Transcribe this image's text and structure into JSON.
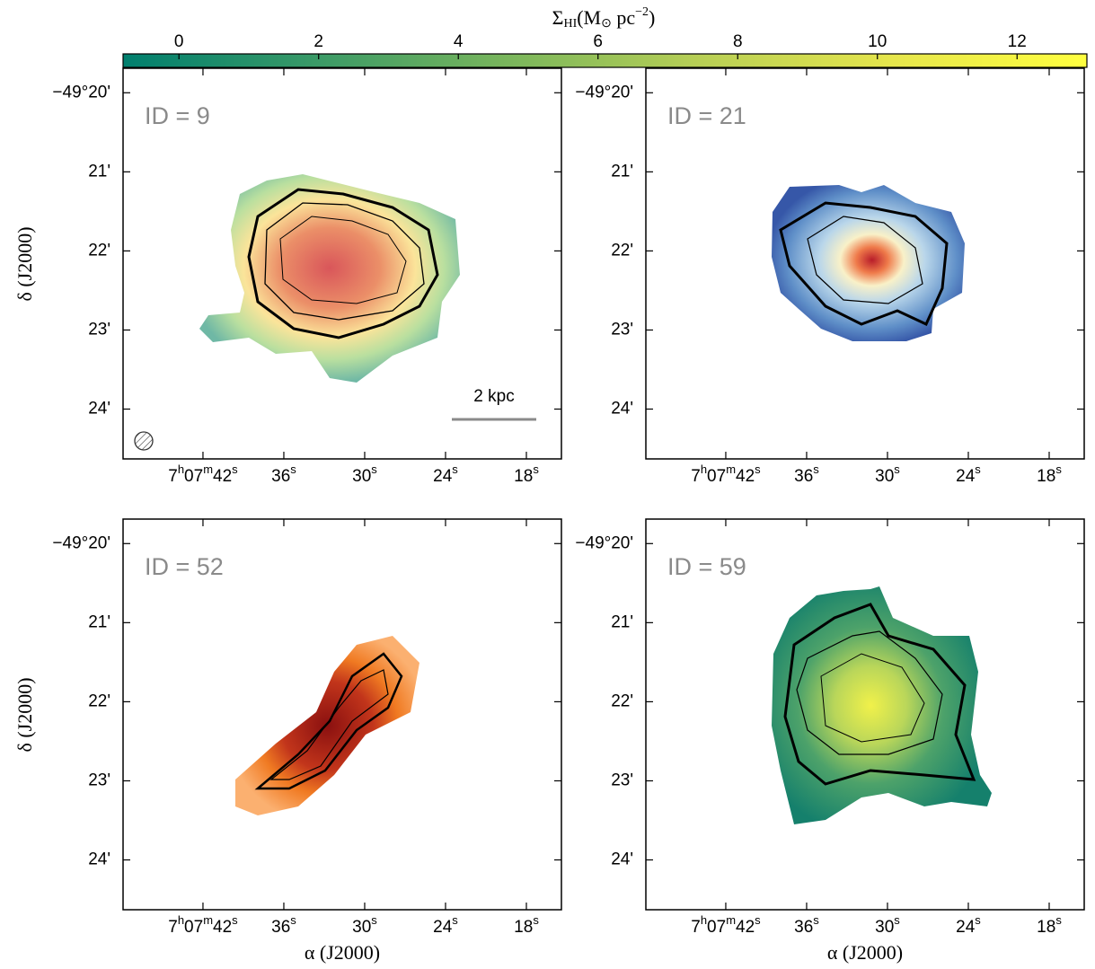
{
  "colorbar": {
    "label_parts": [
      "Σ",
      "HI",
      "(M",
      "⊙",
      " pc",
      "−2",
      ")"
    ],
    "lim": [
      -0.8,
      13.0
    ],
    "ticks": [
      0,
      2,
      4,
      6,
      8,
      10,
      12
    ],
    "colors": [
      "#007f6e",
      "#3a9a67",
      "#7ab65c",
      "#b8cf55",
      "#e6e64c",
      "#ffff3f"
    ]
  },
  "axes": {
    "ylabel": "δ (J2000)",
    "xlabel": "α (J2000)",
    "ylim": [
      19.69,
      24.63
    ],
    "yticks": [
      {
        "value": 20,
        "label": "−49°20'"
      },
      {
        "value": 21,
        "label": "21'"
      },
      {
        "value": 22,
        "label": "22'"
      },
      {
        "value": 23,
        "label": "23'"
      },
      {
        "value": 24,
        "label": "24'"
      }
    ],
    "xlim": [
      47.93,
      15.4
    ],
    "xticks": [
      {
        "value": 42,
        "label": [
          "7",
          "h",
          "07",
          "m",
          "42",
          "s"
        ]
      },
      {
        "value": 36,
        "label": [
          "36",
          "s"
        ]
      },
      {
        "value": 30,
        "label": [
          "30",
          "s"
        ]
      },
      {
        "value": 24,
        "label": [
          "24",
          "s"
        ]
      },
      {
        "value": 18,
        "label": [
          "18",
          "s"
        ]
      }
    ]
  },
  "panels": [
    {
      "id_label": "ID = 9",
      "scale_bar": "2 kpc"
    },
    {
      "id_label": "ID = 21"
    },
    {
      "id_label": "ID = 52"
    },
    {
      "id_label": "ID = 59"
    }
  ]
}
